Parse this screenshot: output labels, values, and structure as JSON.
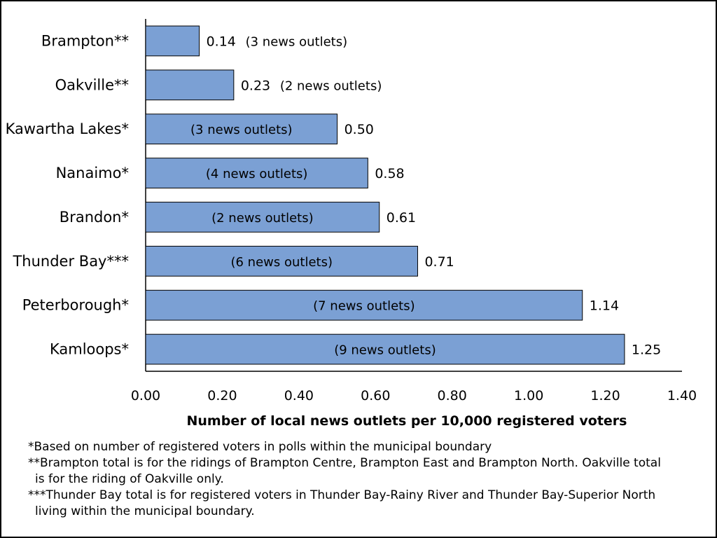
{
  "chart_data": {
    "type": "bar",
    "orientation": "horizontal",
    "categories": [
      "Brampton**",
      "Oakville**",
      "Kawartha Lakes*",
      "Nanaimo*",
      "Brandon*",
      "Thunder Bay***",
      "Peterborough*",
      "Kamloops*"
    ],
    "values": [
      0.14,
      0.23,
      0.5,
      0.58,
      0.61,
      0.71,
      1.14,
      1.25
    ],
    "value_labels": [
      "0.14",
      "0.23",
      "0.50",
      "0.58",
      "0.61",
      "0.71",
      "1.14",
      "1.25"
    ],
    "bar_annotations": [
      "(3 news outlets)",
      "(2 news outlets)",
      "(3 news outlets)",
      "(4 news outlets)",
      "(2 news outlets)",
      "(6 news outlets)",
      "(7 news outlets)",
      "(9 news outlets)"
    ],
    "xlabel": "Number of local news outlets per 10,000 registered voters",
    "ylabel": "",
    "xlim": [
      0,
      1.4
    ],
    "xticks": [
      "0.00",
      "0.20",
      "0.40",
      "0.60",
      "0.80",
      "1.00",
      "1.20",
      "1.40"
    ],
    "grid": false,
    "legend": "none",
    "bar_color": "#7ba0d4",
    "bar_edge_color": "#000000"
  },
  "footnotes": [
    "*Based on number of registered voters in polls within the municipal boundary",
    "**Brampton total is for the ridings of Brampton Centre, Brampton East and Brampton North. Oakville total",
    "is for the riding of Oakville only.",
    "***Thunder Bay total  is for registered voters in Thunder Bay-Rainy River and Thunder Bay-Superior North",
    "living within the municipal boundary."
  ]
}
